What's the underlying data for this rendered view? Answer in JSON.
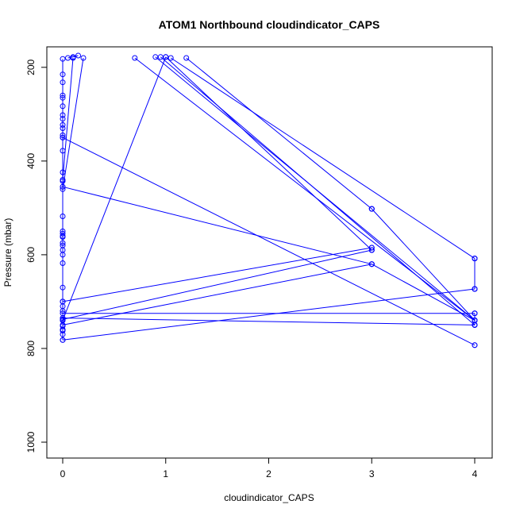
{
  "chart_data": {
    "type": "line",
    "title": "ATOM1 Northbound cloudindicator_CAPS",
    "xlabel": "cloudindicator_CAPS",
    "ylabel": "Pressure (mbar)",
    "xlim": [
      0,
      4
    ],
    "ylim": [
      1000,
      180
    ],
    "y_reversed": true,
    "xticks": [
      0,
      1,
      2,
      3,
      4
    ],
    "yticks": [
      200,
      400,
      600,
      800,
      1000
    ],
    "grid": false,
    "legend": "none",
    "colors": {
      "series": "#0000ff",
      "axis": "#000000"
    },
    "series": [
      {
        "x": [
          0,
          0,
          0,
          0,
          0,
          0,
          0,
          0,
          0,
          0,
          0,
          0,
          0,
          0,
          0,
          0,
          0,
          0,
          0,
          0,
          0,
          0,
          0,
          0,
          0,
          0,
          0,
          0,
          0,
          0,
          0,
          0,
          0,
          0,
          0,
          0,
          0
        ],
        "y": [
          182,
          215,
          232,
          260,
          265,
          283,
          302,
          310,
          323,
          330,
          345,
          350,
          378,
          424,
          443,
          455,
          518,
          550,
          555,
          560,
          562,
          575,
          580,
          590,
          600,
          618,
          670,
          700,
          710,
          720,
          740,
          752,
          760,
          762,
          770,
          782,
          760
        ]
      },
      {
        "x": [
          0.05,
          0.1,
          0.15
        ],
        "y": [
          180,
          178,
          175
        ]
      },
      {
        "x": [
          0,
          0.1
        ],
        "y": [
          440,
          180
        ]
      },
      {
        "x": [
          0,
          0.2
        ],
        "y": [
          460,
          180
        ]
      },
      {
        "x": [
          0,
          1.0
        ],
        "y": [
          740,
          178
        ]
      },
      {
        "x": [
          0.7,
          4
        ],
        "y": [
          180,
          740
        ]
      },
      {
        "x": [
          0.9,
          4
        ],
        "y": [
          178,
          740
        ]
      },
      {
        "x": [
          0.95,
          4
        ],
        "y": [
          178,
          750
        ]
      },
      {
        "x": [
          1.0,
          3
        ],
        "y": [
          178,
          590
        ]
      },
      {
        "x": [
          1.05,
          4
        ],
        "y": [
          180,
          608
        ]
      },
      {
        "x": [
          1.2,
          3
        ],
        "y": [
          180,
          502
        ]
      },
      {
        "x": [
          3,
          4
        ],
        "y": [
          502,
          740
        ]
      },
      {
        "x": [
          0,
          4
        ],
        "y": [
          350,
          793
        ]
      },
      {
        "x": [
          0,
          3
        ],
        "y": [
          455,
          620
        ]
      },
      {
        "x": [
          3,
          4
        ],
        "y": [
          620,
          740
        ]
      },
      {
        "x": [
          0,
          3
        ],
        "y": [
          700,
          585
        ]
      },
      {
        "x": [
          0,
          3
        ],
        "y": [
          738,
          590
        ]
      },
      {
        "x": [
          0,
          3
        ],
        "y": [
          750,
          620
        ]
      },
      {
        "x": [
          0,
          4
        ],
        "y": [
          782,
          673
        ]
      },
      {
        "x": [
          0,
          4
        ],
        "y": [
          735,
          750
        ]
      },
      {
        "x": [
          0,
          4
        ],
        "y": [
          725,
          725
        ]
      },
      {
        "x": [
          4,
          4
        ],
        "y": [
          608,
          673
        ]
      },
      {
        "x": [
          4,
          4
        ],
        "y": [
          725,
          750
        ]
      }
    ],
    "points": [
      {
        "x": 3,
        "y": 502
      },
      {
        "x": 3,
        "y": 585
      },
      {
        "x": 3,
        "y": 590
      },
      {
        "x": 3,
        "y": 620
      },
      {
        "x": 4,
        "y": 608
      },
      {
        "x": 4,
        "y": 673
      },
      {
        "x": 4,
        "y": 725
      },
      {
        "x": 4,
        "y": 740
      },
      {
        "x": 4,
        "y": 750
      },
      {
        "x": 4,
        "y": 793
      }
    ]
  }
}
